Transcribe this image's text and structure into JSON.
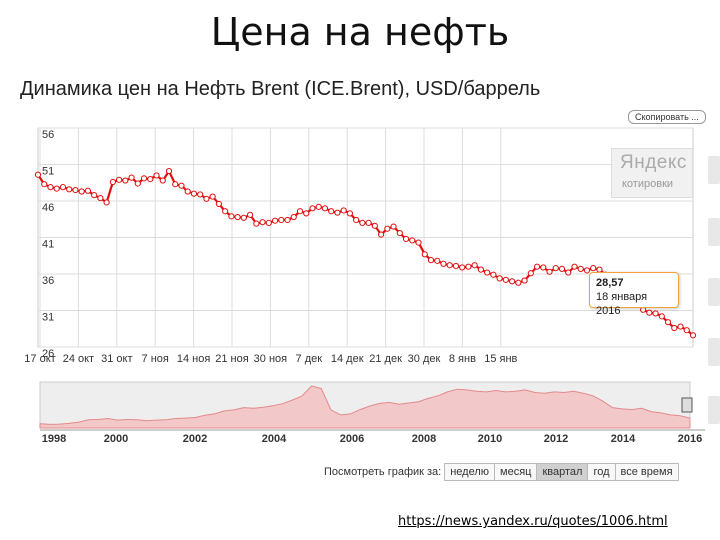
{
  "slide_title": "Цена на нефть",
  "chart_title": "Динамика цен на Нефть Brent (ICE.Brent), USD/баррель",
  "copy_button": "Скопировать ...",
  "watermark": {
    "logo": "Яндекс",
    "subtitle": "котировки"
  },
  "tooltip": {
    "value": "28,57",
    "date": "18 января 2016"
  },
  "period_selector": {
    "label": "Посмотреть график за:",
    "options": [
      "неделю",
      "месяц",
      "квартал",
      "год",
      "все время"
    ],
    "selected": "квартал"
  },
  "source_url": "https://news.yandex.ru/quotes/1006.html",
  "colors": {
    "line": "#e01010",
    "marker_fill": "#ffffff",
    "tooltip_border": "#f0a43a",
    "navigator_fill": "#f3c8c8"
  },
  "chart_data": [
    {
      "type": "line",
      "title": "Динамика цен на Нефть Brent (ICE.Brent), USD/баррель",
      "yticks": [
        "56",
        "51",
        "46",
        "41",
        "36",
        "31",
        "26"
      ],
      "ylim": [
        26,
        56
      ],
      "xticks": [
        "17 окт",
        "24 окт",
        "31 окт",
        "7 ноя",
        "14 ноя",
        "21 ноя",
        "30 ноя",
        "7 дек",
        "14 дек",
        "21 дек",
        "30 дек",
        "8 янв",
        "15 янв"
      ],
      "grid": true,
      "series": [
        {
          "values": [
            49.6,
            48.3,
            47.9,
            47.7,
            47.9,
            47.6,
            47.5,
            47.3,
            47.4,
            46.8,
            46.4,
            45.8,
            48.6,
            48.9,
            48.8,
            49.2,
            48.4,
            49.1,
            49.0,
            49.5,
            48.8,
            50.1,
            48.3,
            48.1,
            47.3,
            47.0,
            46.9,
            46.3,
            46.6,
            45.6,
            44.6,
            43.9,
            43.8,
            43.7,
            44.1,
            42.9,
            43.1,
            43.0,
            43.3,
            43.4,
            43.4,
            43.8,
            44.6,
            44.3,
            45.0,
            45.2,
            45.0,
            44.6,
            44.4,
            44.7,
            44.3,
            43.4,
            43.0,
            43.0,
            42.6,
            41.4,
            42.2,
            42.5,
            41.6,
            40.8,
            40.6,
            40.3,
            38.7,
            37.9,
            37.8,
            37.4,
            37.2,
            37.1,
            36.9,
            37.0,
            37.2,
            36.6,
            36.2,
            35.9,
            35.4,
            35.2,
            35.0,
            34.8,
            35.1,
            36.1,
            37.0,
            36.9,
            36.3,
            36.8,
            36.7,
            36.2,
            37.0,
            36.7,
            36.5,
            36.8,
            36.6,
            35.9,
            34.3,
            33.7,
            33.3,
            33.2,
            32.6,
            31.1,
            30.7,
            30.6,
            30.2,
            29.4,
            28.6,
            28.8,
            28.3,
            27.6
          ]
        }
      ]
    },
    {
      "type": "area",
      "xticks": [
        "1998",
        "2000",
        "2002",
        "2004",
        "2006",
        "2008",
        "2010",
        "2012",
        "2014",
        "2016"
      ],
      "series": [
        {
          "values": [
            13,
            11,
            12,
            14,
            18,
            25,
            26,
            29,
            24,
            26,
            25,
            22,
            24,
            25,
            29,
            30,
            32,
            39,
            43,
            52,
            55,
            62,
            60,
            63,
            68,
            74,
            85,
            97,
            128,
            120,
            55,
            40,
            43,
            56,
            67,
            75,
            78,
            72,
            76,
            80,
            90,
            98,
            110,
            118,
            116,
            112,
            110,
            114,
            110,
            112,
            116,
            108,
            106,
            110,
            108,
            112,
            106,
            98,
            82,
            62,
            58,
            56,
            60,
            50,
            46,
            40,
            37,
            30
          ]
        }
      ]
    }
  ]
}
